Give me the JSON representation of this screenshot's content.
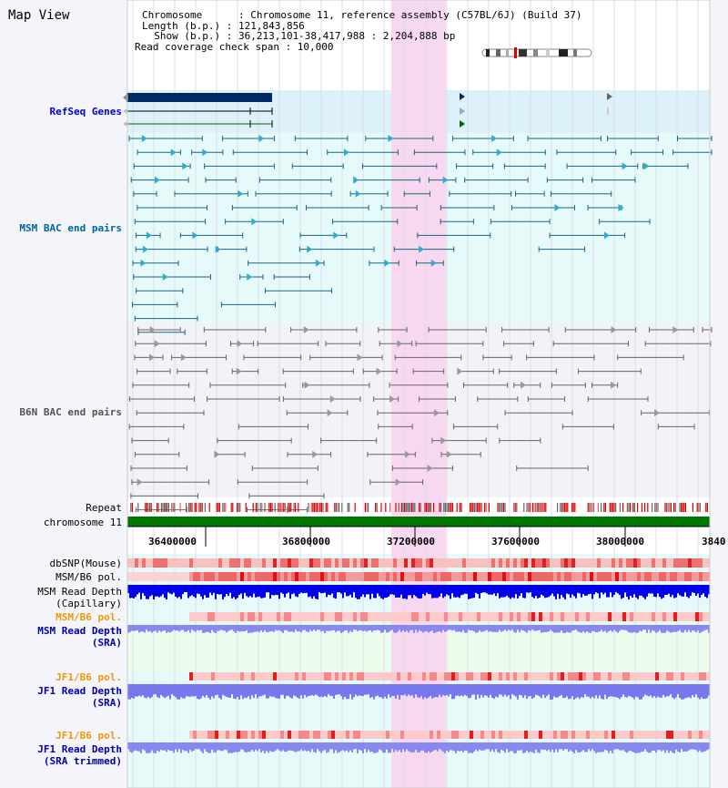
{
  "panel": {
    "title": "Map View"
  },
  "info": {
    "chromosome_line": "Chromosome      : Chromosome 11, reference assembly (C57BL/6J) (Build 37)",
    "length_line": "Length (b.p.) : 121,843,856",
    "show_line": "  Show (b.p.) : 36,213,101-38,417,988 : 2,204,888 bp",
    "coverage_line": "Read coverage check span : 10,000"
  },
  "tracks": {
    "refseq": "RefSeq Genes",
    "msm_bac": "MSM BAC end pairs",
    "b6n_bac": "B6N BAC end pairs",
    "repeat": "Repeat",
    "chromosome": "chromosome 11",
    "dbsnp": "dbSNP(Mouse)",
    "msm_b6_pol_1": "MSM/B6 pol.",
    "msm_depth_cap_1": "MSM Read Depth",
    "msm_depth_cap_2": "(Capillary)",
    "msm_b6_pol_2": "MSM/B6 pol.",
    "msm_depth_sra_1": "MSM Read Depth",
    "msm_depth_sra_2": "(SRA)",
    "jf1_b6_pol_1": "JF1/B6 pol.",
    "jf1_depth_sra_1": "JF1 Read Depth",
    "jf1_depth_sra_2": "(SRA)",
    "jf1_b6_pol_2": "JF1/B6 pol.",
    "jf1_depth_trim_1": "JF1 Read Depth",
    "jf1_depth_trim_2": "(SRA trimmed)"
  },
  "axis": {
    "ticks": [
      "36400000",
      "36800000",
      "37200000",
      "37600000",
      "38000000",
      "3840"
    ]
  },
  "colors": {
    "refseq_label": "#0000cc",
    "msm_label": "#006699",
    "b6n_label": "#555555",
    "jf1_pol_label": "#ee9900",
    "depth_label": "#0000aa",
    "highlight": "#f8d8f0",
    "chromosome_bar": "#007700"
  }
}
